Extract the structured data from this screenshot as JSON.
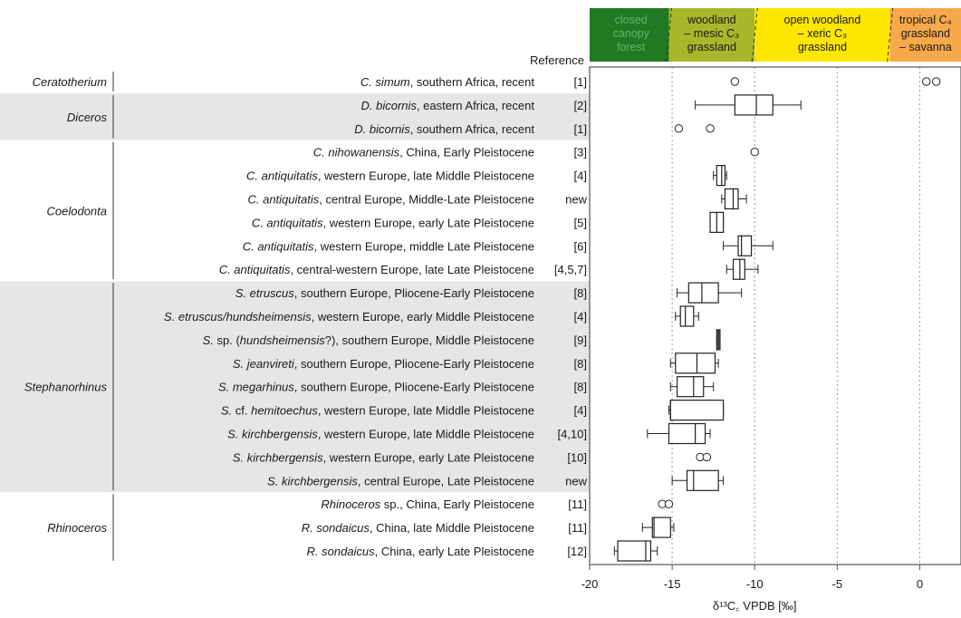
{
  "chart_data": {
    "type": "boxplot",
    "xlabel": "δ¹³C꜀ VPDB [‰]",
    "reference_header": "Reference",
    "xlim": [
      -20,
      2.5
    ],
    "xticks": [
      -20,
      -15,
      -10,
      -5,
      0
    ],
    "xtick_labels": [
      "-20",
      "-15",
      "-10",
      "-5",
      "0"
    ],
    "vgrid": [
      -15,
      -10,
      -5,
      0
    ],
    "zones": [
      {
        "lines": [
          "closed",
          "canopy",
          "forest"
        ],
        "from": -20,
        "to": -15.2,
        "color": "#1f7a22",
        "text_color": "#69b266"
      },
      {
        "lines": [
          "woodland",
          "– mesic C₃",
          "grassland"
        ],
        "from": -15.2,
        "to": -10,
        "color": "#a5b82a",
        "text_color": "#1a1a1a"
      },
      {
        "lines": [
          "open woodland",
          "– xeric C₃",
          "grassland"
        ],
        "from": -10,
        "to": -1.8,
        "color": "#ffe600",
        "text_color": "#1a1a1a"
      },
      {
        "lines": [
          "tropical C₄",
          "grassland",
          "– savanna"
        ],
        "from": -1.8,
        "to": 2.5,
        "color": "#f7a84a",
        "text_color": "#1a1a1a"
      }
    ],
    "groups": [
      {
        "genus": "Ceratotherium",
        "shaded": false,
        "rows": [
          0,
          0
        ]
      },
      {
        "genus": "Diceros",
        "shaded": true,
        "rows": [
          1,
          2
        ]
      },
      {
        "genus": "Coelodonta",
        "shaded": false,
        "rows": [
          3,
          8
        ]
      },
      {
        "genus": "Stephanorhinus",
        "shaded": true,
        "rows": [
          9,
          17
        ]
      },
      {
        "genus": "Rhinoceros",
        "shaded": false,
        "rows": [
          18,
          20
        ]
      }
    ],
    "rows": [
      {
        "parts": [
          {
            "t": "C. simum",
            "i": true
          },
          {
            "t": ", southern Africa, recent"
          }
        ],
        "ref": "[1]",
        "box": null,
        "outliers": [
          -11.2,
          0.4,
          1.0
        ]
      },
      {
        "parts": [
          {
            "t": "D. bicornis",
            "i": true
          },
          {
            "t": ", eastern Africa, recent"
          }
        ],
        "ref": "[2]",
        "box": {
          "wlo": -13.6,
          "q1": -11.2,
          "med": -9.9,
          "q3": -8.9,
          "whi": -7.2
        },
        "outliers": []
      },
      {
        "parts": [
          {
            "t": "D. bicornis",
            "i": true
          },
          {
            "t": ", southern Africa, recent"
          }
        ],
        "ref": "[1]",
        "box": null,
        "outliers": [
          -14.6,
          -12.7
        ]
      },
      {
        "parts": [
          {
            "t": "C. nihowanensis",
            "i": true
          },
          {
            "t": ", China, Early Pleistocene"
          }
        ],
        "ref": "[3]",
        "box": null,
        "outliers": [
          -10.0
        ]
      },
      {
        "parts": [
          {
            "t": "C. antiquitatis",
            "i": true
          },
          {
            "t": ", western Europe, late Middle Pleistocene"
          }
        ],
        "ref": "[4]",
        "box": {
          "wlo": -12.5,
          "q1": -12.3,
          "med": -12.0,
          "q3": -11.8,
          "whi": -11.7
        },
        "outliers": []
      },
      {
        "parts": [
          {
            "t": "C. antiquitatis",
            "i": true
          },
          {
            "t": ", central Europe, Middle-Late Pleistocene"
          }
        ],
        "ref": "new",
        "box": {
          "wlo": -12.0,
          "q1": -11.8,
          "med": -11.3,
          "q3": -11.0,
          "whi": -10.5
        },
        "outliers": []
      },
      {
        "parts": [
          {
            "t": "C. antiquitatis",
            "i": true
          },
          {
            "t": ", western Europe, early Late Pleistocene"
          }
        ],
        "ref": "[5]",
        "box": {
          "wlo": -12.7,
          "q1": -12.7,
          "med": -12.3,
          "q3": -11.9,
          "whi": -11.9
        },
        "outliers": []
      },
      {
        "parts": [
          {
            "t": "C. antiquitatis",
            "i": true
          },
          {
            "t": ", western Europe, middle Late Pleistocene"
          }
        ],
        "ref": "[6]",
        "box": {
          "wlo": -11.9,
          "q1": -11.0,
          "med": -10.8,
          "q3": -10.2,
          "whi": -8.9
        },
        "outliers": []
      },
      {
        "parts": [
          {
            "t": "C. antiquitatis",
            "i": true
          },
          {
            "t": ", central-western Europe, late Late Pleistocene"
          }
        ],
        "ref": "[4,5,7]",
        "box": {
          "wlo": -11.7,
          "q1": -11.3,
          "med": -10.9,
          "q3": -10.6,
          "whi": -9.8
        },
        "outliers": []
      },
      {
        "parts": [
          {
            "t": "S. etruscus",
            "i": true
          },
          {
            "t": ", southern Europe, Pliocene-Early Pleistocene"
          }
        ],
        "ref": "[8]",
        "box": {
          "wlo": -14.7,
          "q1": -14.0,
          "med": -13.2,
          "q3": -12.2,
          "whi": -10.8
        },
        "outliers": []
      },
      {
        "parts": [
          {
            "t": "S. etruscus/hundsheimensis",
            "i": true
          },
          {
            "t": ", western Europe, early Middle Pleistocene"
          }
        ],
        "ref": "[4]",
        "box": {
          "wlo": -14.8,
          "q1": -14.5,
          "med": -14.2,
          "q3": -13.7,
          "whi": -13.4
        },
        "outliers": []
      },
      {
        "parts": [
          {
            "t": "S.",
            "i": true
          },
          {
            "t": " sp. ("
          },
          {
            "t": "hundsheimensis",
            "i": true
          },
          {
            "t": "?), southern Europe, Middle Pleistocene"
          }
        ],
        "ref": "[9]",
        "box": {
          "wlo": -12.3,
          "q1": -12.3,
          "med": -12.2,
          "q3": -12.1,
          "whi": -12.1
        },
        "outliers": []
      },
      {
        "parts": [
          {
            "t": "S. jeanvireti",
            "i": true
          },
          {
            "t": ", southern Europe, Pliocene-Early Pleistocene"
          }
        ],
        "ref": "[8]",
        "box": {
          "wlo": -15.1,
          "q1": -14.8,
          "med": -13.5,
          "q3": -12.4,
          "whi": -12.2
        },
        "outliers": []
      },
      {
        "parts": [
          {
            "t": "S. megarhinus",
            "i": true
          },
          {
            "t": ", southern Europe, Pliocene-Early Pleistocene"
          }
        ],
        "ref": "[8]",
        "box": {
          "wlo": -15.1,
          "q1": -14.7,
          "med": -13.7,
          "q3": -13.1,
          "whi": -12.5
        },
        "outliers": []
      },
      {
        "parts": [
          {
            "t": "S.",
            "i": true
          },
          {
            "t": " cf. "
          },
          {
            "t": "hemitoechus",
            "i": true
          },
          {
            "t": ", western Europe, late Middle Pleistocene"
          }
        ],
        "ref": "[4]",
        "box": {
          "wlo": -15.2,
          "q1": -15.1,
          "med": -15.1,
          "q3": -11.9,
          "whi": -11.9
        },
        "outliers": []
      },
      {
        "parts": [
          {
            "t": "S. kirchbergensis",
            "i": true
          },
          {
            "t": ", western Europe, late Middle Pleistocene"
          }
        ],
        "ref": "[4,10]",
        "box": {
          "wlo": -16.5,
          "q1": -15.2,
          "med": -13.6,
          "q3": -13.0,
          "whi": -12.7
        },
        "outliers": []
      },
      {
        "parts": [
          {
            "t": "S. kirchbergensis",
            "i": true
          },
          {
            "t": ", western Europe, early Late Pleistocene"
          }
        ],
        "ref": "[10]",
        "box": null,
        "outliers": [
          -13.3,
          -12.9
        ]
      },
      {
        "parts": [
          {
            "t": "S. kirchbergensis",
            "i": true
          },
          {
            "t": ", central Europe, Late Pleistocene"
          }
        ],
        "ref": "new",
        "box": {
          "wlo": -15.0,
          "q1": -14.1,
          "med": -13.7,
          "q3": -12.2,
          "whi": -11.9
        },
        "outliers": []
      },
      {
        "parts": [
          {
            "t": "Rhinoceros",
            "i": true
          },
          {
            "t": " sp., China, Early Pleistocene"
          }
        ],
        "ref": "[11]",
        "box": null,
        "outliers": [
          -15.6,
          -15.2
        ]
      },
      {
        "parts": [
          {
            "t": "R. sondaicus",
            "i": true
          },
          {
            "t": ", China, late Middle Pleistocene"
          }
        ],
        "ref": "[11]",
        "box": {
          "wlo": -16.8,
          "q1": -16.2,
          "med": -16.1,
          "q3": -15.1,
          "whi": -14.9
        },
        "outliers": []
      },
      {
        "parts": [
          {
            "t": "R. sondaicus",
            "i": true
          },
          {
            "t": ", China, early Late Pleistocene"
          }
        ],
        "ref": "[12]",
        "box": {
          "wlo": -18.5,
          "q1": -18.3,
          "med": -16.6,
          "q3": -16.3,
          "whi": -15.9
        },
        "outliers": []
      }
    ]
  }
}
